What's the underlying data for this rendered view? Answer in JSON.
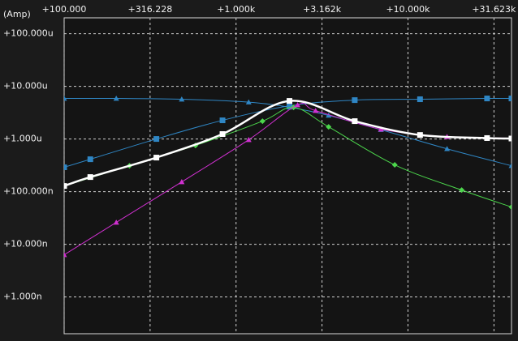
{
  "chart_data": {
    "type": "line",
    "y_label": "(Amp)",
    "x_scale": "log",
    "y_scale": "log",
    "grid": true,
    "xlim": [
      100,
      40000
    ],
    "ylim": [
      2e-10,
      0.0002
    ],
    "xticks": [
      {
        "value": 100,
        "label": "+100.000"
      },
      {
        "value": 316.228,
        "label": "+316.228"
      },
      {
        "value": 1000,
        "label": "+1.000k"
      },
      {
        "value": 3162,
        "label": "+3.162k"
      },
      {
        "value": 10000,
        "label": "+10.000k"
      },
      {
        "value": 31623,
        "label": "+31.623k"
      }
    ],
    "yticks": [
      {
        "value": 0.0001,
        "label": "+100.000u"
      },
      {
        "value": 1e-05,
        "label": "+10.000u"
      },
      {
        "value": 1e-06,
        "label": "+1.000u"
      },
      {
        "value": 1e-07,
        "label": "+100.000n"
      },
      {
        "value": 1e-08,
        "label": "+10.000n"
      },
      {
        "value": 1e-09,
        "label": "+1.000n"
      }
    ],
    "series": [
      {
        "color": "#2f86c4",
        "marker": "triangle",
        "linewidth": 1,
        "x": [
          100,
          201,
          483,
          1184,
          2045,
          3453,
          6954,
          16870,
          40000
        ],
        "values": [
          5.88e-06,
          5.88e-06,
          5.68e-06,
          5e-06,
          4e-06,
          2.8e-06,
          1.5e-06,
          6.5e-07,
          3.1e-07
        ]
      },
      {
        "color": "#2f86c4",
        "marker": "square",
        "linewidth": 1,
        "x": [
          100,
          142,
          344,
          834,
          2045,
          4900,
          11750,
          28840,
          40000
        ],
        "values": [
          2.9e-07,
          4.12e-07,
          1e-06,
          2.26e-06,
          4.27e-06,
          5.47e-06,
          5.68e-06,
          5.88e-06,
          5.88e-06
        ]
      },
      {
        "color": "#4cd64c",
        "marker": "diamond",
        "linewidth": 1,
        "x": [
          100,
          240,
          581,
          1425,
          2160,
          3453,
          8375,
          20520,
          40000
        ],
        "values": [
          1.28e-07,
          3.1e-07,
          7.53e-07,
          2.18e-06,
          3.98e-06,
          1.7e-06,
          3.22e-07,
          1.07e-07,
          5.1e-08
        ]
      },
      {
        "color": "#d030d0",
        "marker": "triangle",
        "linewidth": 1,
        "x": [
          100,
          201,
          483,
          1184,
          2280,
          2900,
          6954,
          16870,
          40000
        ],
        "values": [
          6.3e-09,
          2.6e-08,
          1.53e-07,
          9.66e-07,
          4.43e-06,
          3.45e-06,
          1.53e-06,
          1.1e-06,
          1.04e-06
        ]
      },
      {
        "color": "#ffffff",
        "marker": "square",
        "linewidth": 2.5,
        "x": [
          100,
          142,
          344,
          834,
          2045,
          4900,
          11750,
          28840,
          40000
        ],
        "values": [
          1.28e-07,
          1.89e-07,
          4.43e-07,
          1.24e-06,
          5.28e-06,
          2.18e-06,
          1.19e-06,
          1.04e-06,
          1.02e-06
        ]
      }
    ]
  }
}
